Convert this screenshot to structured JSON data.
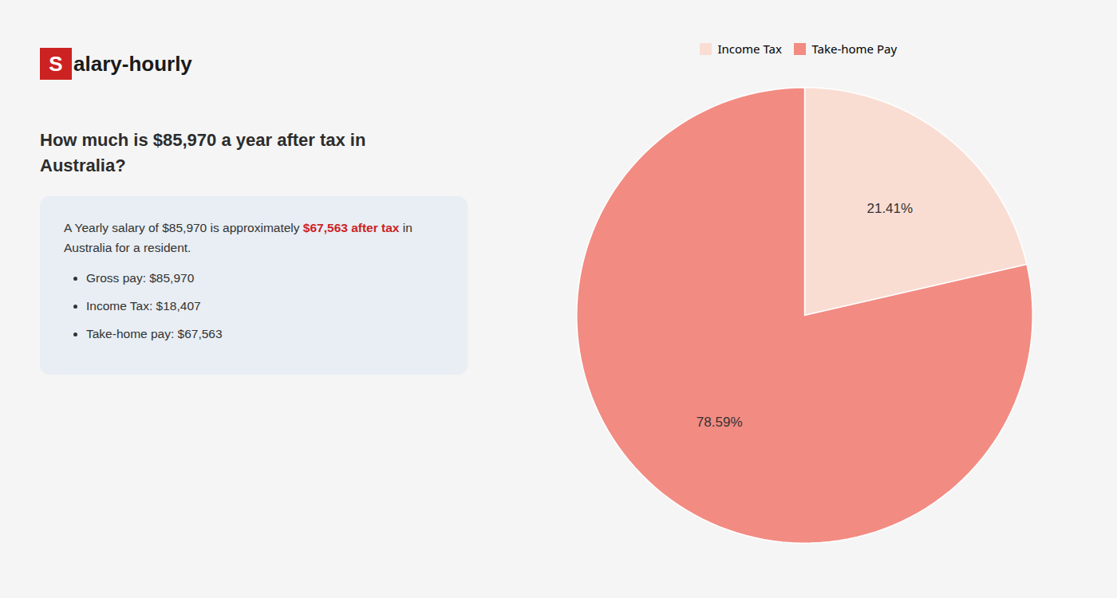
{
  "chart_data": {
    "type": "pie",
    "title": "How much is $85,970 a year after tax in Australia?",
    "categories": [
      "Income Tax",
      "Take-home Pay"
    ],
    "values": [
      21.41,
      78.59
    ],
    "value_labels": [
      "21.41%",
      "78.59%"
    ],
    "colors": [
      "#f9ddd3",
      "#f28b82"
    ],
    "data_labels": true,
    "legend": "top",
    "annotations": [
      [
        {
          "text": "S",
          "color": "#cc2222"
        },
        {
          "text": "alary-hourly"
        }
      ],
      [
        {
          "text": "A Yearly salary of $85,970 is approximately "
        },
        {
          "text": "$67,563 after tax",
          "color": "#cc2222"
        },
        {
          "text": " in"
        }
      ],
      [
        {
          "text": "Australia for a resident."
        }
      ],
      [
        {
          "text": "Gross pay: $85,970"
        }
      ],
      [
        {
          "text": "Income Tax: $18,407"
        }
      ],
      [
        {
          "text": "Take-home pay: $67,563"
        }
      ]
    ]
  }
}
